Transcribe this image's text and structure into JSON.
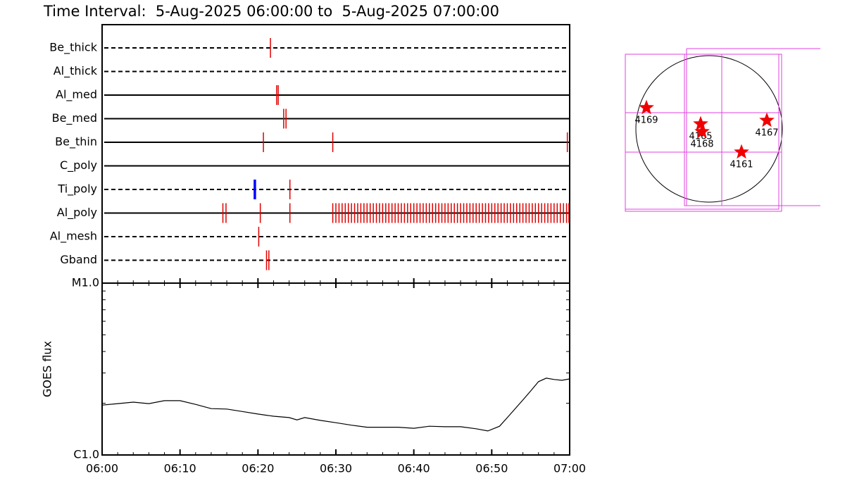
{
  "title": "Time Interval:  5-Aug-2025 06:00:00 to  5-Aug-2025 07:00:00",
  "chart_data": [
    {
      "type": "event",
      "xlim": [
        0,
        60
      ],
      "series": [
        {
          "name": "Be_thick",
          "style": "dashed",
          "color": "#e00000",
          "values": [
            21.6
          ]
        },
        {
          "name": "Al_thick",
          "style": "dashed",
          "color": "#e00000",
          "values": []
        },
        {
          "name": "Al_med",
          "style": "solid",
          "color": "#e00000",
          "values": [
            22.4,
            22.6
          ]
        },
        {
          "name": "Be_med",
          "style": "solid",
          "color": "#e00000",
          "values": [
            23.3,
            23.6
          ]
        },
        {
          "name": "Be_thin",
          "style": "solid",
          "color": "#e00000",
          "values": [
            20.7,
            29.6,
            59.7
          ]
        },
        {
          "name": "C_poly",
          "style": "solid",
          "color": "#e00000",
          "values": []
        },
        {
          "name": "Ti_poly",
          "style": "dashed",
          "colors": [
            "#0000ff",
            "#e00000"
          ],
          "values": [
            19.6,
            24.1
          ]
        },
        {
          "name": "Al_poly",
          "style": "solid",
          "color": "#e00000",
          "values": [
            15.5,
            15.9,
            20.3,
            24.1,
            29.6,
            30,
            30.4,
            30.8,
            31.2,
            31.6,
            32,
            32.4,
            32.8,
            33.2,
            33.6,
            34,
            34.4,
            34.8,
            35.2,
            35.6,
            36,
            36.4,
            36.8,
            37.2,
            37.6,
            38,
            38.4,
            38.8,
            39.2,
            39.6,
            40,
            40.4,
            40.8,
            41.2,
            41.6,
            42,
            42.4,
            42.8,
            43.2,
            43.6,
            44,
            44.4,
            44.8,
            45.2,
            45.6,
            46,
            46.4,
            46.8,
            47.2,
            47.6,
            48,
            48.4,
            48.8,
            49.2,
            49.6,
            50,
            50.4,
            50.8,
            51.2,
            51.6,
            52,
            52.4,
            52.8,
            53.2,
            53.6,
            54,
            54.4,
            54.8,
            55.2,
            55.6,
            56,
            56.4,
            56.8,
            57.2,
            57.6,
            58,
            58.4,
            58.8,
            59.2,
            59.6,
            59.9
          ]
        },
        {
          "name": "Al_mesh",
          "style": "dashed",
          "color": "#e00000",
          "values": [
            20.1
          ]
        },
        {
          "name": "Gband",
          "style": "dashed",
          "color": "#e00000",
          "values": [
            21.1,
            21.4
          ]
        }
      ]
    },
    {
      "type": "line",
      "ylabel": "GOES flux",
      "color": "#000000",
      "log_y": true,
      "x": [
        0,
        2,
        4,
        6,
        8,
        10,
        12,
        14,
        16,
        18,
        20,
        22,
        24,
        25,
        26,
        28,
        30,
        32,
        34,
        36,
        38,
        40,
        42,
        44,
        46,
        48,
        49.5,
        51,
        52,
        54,
        55,
        56,
        57,
        58,
        59,
        60
      ],
      "values": [
        1.95e-06,
        1.99e-06,
        2.03e-06,
        1.99e-06,
        2.07e-06,
        2.07e-06,
        1.97e-06,
        1.86e-06,
        1.85e-06,
        1.79e-06,
        1.73e-06,
        1.68e-06,
        1.65e-06,
        1.6e-06,
        1.65e-06,
        1.59e-06,
        1.54e-06,
        1.49e-06,
        1.45e-06,
        1.45e-06,
        1.45e-06,
        1.43e-06,
        1.47e-06,
        1.46e-06,
        1.46e-06,
        1.42e-06,
        1.38e-06,
        1.47e-06,
        1.65e-06,
        2.09e-06,
        2.36e-06,
        2.67e-06,
        2.8e-06,
        2.75e-06,
        2.72e-06,
        2.77e-06
      ],
      "xlim": [
        0,
        60
      ],
      "xticks": [
        {
          "value": 0,
          "label": "06:00"
        },
        {
          "value": 10,
          "label": "06:10"
        },
        {
          "value": 20,
          "label": "06:20"
        },
        {
          "value": 30,
          "label": "06:30"
        },
        {
          "value": 40,
          "label": "06:40"
        },
        {
          "value": 50,
          "label": "06:50"
        },
        {
          "value": 60,
          "label": "07:00"
        }
      ],
      "xminorticks": [
        2,
        4,
        6,
        8,
        12,
        14,
        16,
        18,
        22,
        24,
        26,
        28,
        32,
        34,
        36,
        38,
        42,
        44,
        46,
        48,
        52,
        54,
        56,
        58
      ],
      "ylim": [
        1e-06,
        1e-05
      ],
      "yticks": [
        {
          "value": 1e-06,
          "label": "C1.0"
        },
        {
          "value": 1e-05,
          "label": "M1.0"
        }
      ],
      "yminorticks": [
        2e-06,
        3e-06,
        4e-06,
        5e-06,
        6e-06,
        7e-06,
        8e-06,
        9e-06
      ]
    }
  ],
  "map": {
    "labels": [
      "4169",
      "4165",
      "4168",
      "4167",
      "4161"
    ]
  }
}
